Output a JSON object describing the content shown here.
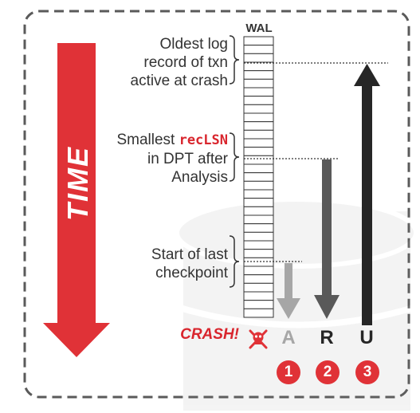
{
  "time_label": "TIME",
  "wal": {
    "title": "WAL",
    "record_count": 33
  },
  "labels": {
    "oldest": [
      "Oldest log",
      "record of txn",
      "active at crash"
    ],
    "reclsn_line1_prefix": "Smallest ",
    "reclsn_code": "recLSN",
    "reclsn_rest": [
      "in DPT after",
      "Analysis"
    ],
    "checkpoint": [
      "Start of last",
      "checkpoint"
    ]
  },
  "crash_label": "CRASH!",
  "crash_icon": "skull-crossbones-icon",
  "phases": [
    {
      "letter": "A",
      "number": "1",
      "color": "#a6a6a6",
      "direction": "down"
    },
    {
      "letter": "R",
      "number": "2",
      "color": "#595959",
      "direction": "down"
    },
    {
      "letter": "U",
      "number": "3",
      "color": "#262626",
      "direction": "up"
    }
  ],
  "colors": {
    "accent_red": "#e03237",
    "frame": "#5a5a5a"
  }
}
